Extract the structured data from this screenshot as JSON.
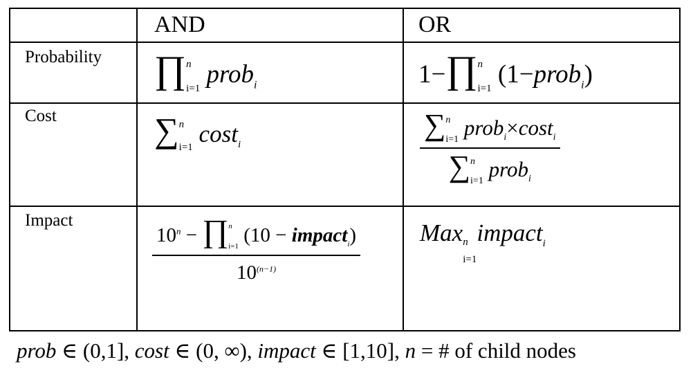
{
  "headers": {
    "and": "AND",
    "or": "OR"
  },
  "rows": [
    {
      "label": "Probability"
    },
    {
      "label": "Cost"
    },
    {
      "label": "Impact"
    }
  ],
  "formulas": {
    "prob_and": {
      "symbol": "∏",
      "lower": "i=1",
      "upper": "n",
      "expr": "prob",
      "sub": "i"
    },
    "prob_or": {
      "prefix": "1−",
      "symbol": "∏",
      "lower": "i=1",
      "upper": "n",
      "open": "(1−",
      "expr": "prob",
      "sub": "i",
      "close": ")"
    },
    "cost_and": {
      "symbol": "∑",
      "lower": "i=1",
      "upper": "n",
      "expr": "cost",
      "sub": "i"
    },
    "cost_or": {
      "num_symbol": "∑",
      "num_lower": "i=1",
      "num_upper": "n",
      "num_expr1": "prob",
      "num_sub1": "i",
      "num_times": "×",
      "num_expr2": "cost",
      "num_sub2": "i",
      "den_symbol": "∑",
      "den_lower": "i=1",
      "den_upper": "n",
      "den_expr": "prob",
      "den_sub": "i"
    },
    "impact_and": {
      "num_base": "10",
      "num_exp": "n",
      "num_minus": " − ",
      "num_symbol": "∏",
      "num_lower": "i=1",
      "num_upper": "n",
      "num_open": "(10 − ",
      "num_expr": "impact",
      "num_sub": "i",
      "num_close": ")",
      "den_base": "10",
      "den_exp": "(n−1)"
    },
    "impact_or": {
      "op": "Max",
      "lower": "i=1",
      "upper": "n",
      "expr": "impact",
      "sub": "i"
    }
  },
  "footnote": {
    "p1": "prob",
    "p2": " ∈ (0,1], ",
    "c1": "cost",
    "c2": " ∈ (0, ∞), ",
    "i1": "impact",
    "i2": " ∈ [1,10], ",
    "n1": "n",
    "n2": " = # ",
    "n3": "of child nodes"
  }
}
